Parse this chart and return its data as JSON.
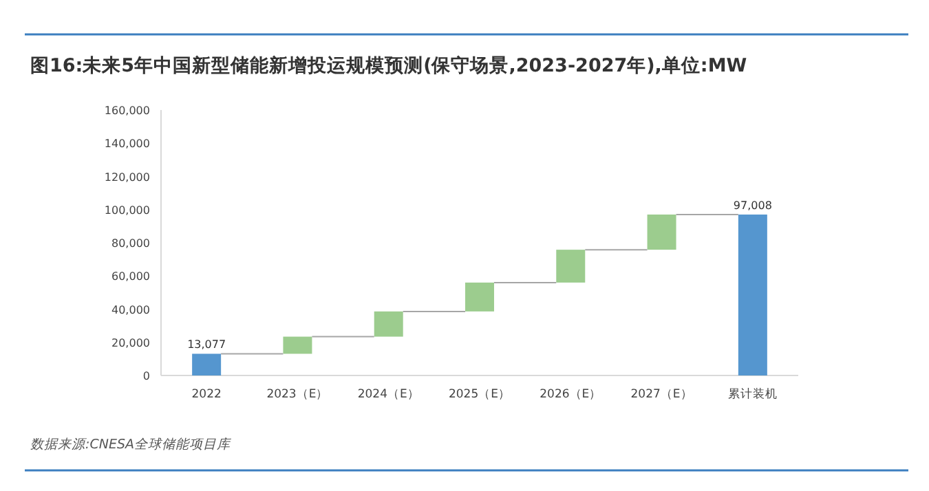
{
  "chart_data": {
    "type": "bar",
    "title": "图16:未来5年中国新型储能新增投运规模预测(保守场景,2023-2027年),单位:MW",
    "categories": [
      "2022",
      "2023（E）",
      "2024（E）",
      "2025（E）",
      "2026（E）",
      "2027（E）",
      "累计装机"
    ],
    "values": [
      13077,
      10323,
      15200,
      17400,
      19800,
      21208,
      97008
    ],
    "base": [
      0,
      13077,
      23400,
      38600,
      56000,
      75800,
      0
    ],
    "colors": [
      "#5596cf",
      "#9ccc8e",
      "#9ccc8e",
      "#9ccc8e",
      "#9ccc8e",
      "#9ccc8e",
      "#5596cf"
    ],
    "value_labels": [
      "13,077",
      null,
      null,
      null,
      null,
      null,
      "97,008"
    ],
    "ylim": [
      0,
      160000
    ],
    "yticks": [
      {
        "value": 0,
        "label": "0"
      },
      {
        "value": 20000,
        "label": "20,000"
      },
      {
        "value": 40000,
        "label": "40,000"
      },
      {
        "value": 60000,
        "label": "60,000"
      },
      {
        "value": 80000,
        "label": "80,000"
      },
      {
        "value": 100000,
        "label": "100,000"
      },
      {
        "value": 120000,
        "label": "120,000"
      },
      {
        "value": 140000,
        "label": "140,000"
      },
      {
        "value": 160000,
        "label": "160,000"
      }
    ],
    "annotations": [
      "数据来源:CNESA全球储能项目库"
    ]
  }
}
